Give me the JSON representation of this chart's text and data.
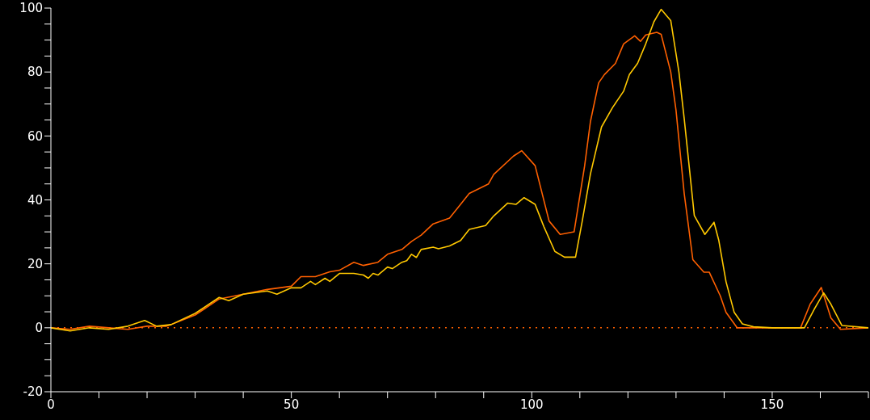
{
  "chart_data": {
    "type": "line",
    "xlim": [
      0,
      170
    ],
    "ylim": [
      -20,
      100
    ],
    "xticks": [
      0,
      {
        "value": 10,
        "label": null
      },
      {
        "value": 20,
        "label": null
      },
      {
        "value": 30,
        "label": null
      },
      {
        "value": 40,
        "label": null
      },
      50,
      {
        "value": 60,
        "label": null
      },
      {
        "value": 70,
        "label": null
      },
      {
        "value": 80,
        "label": null
      },
      {
        "value": 90,
        "label": null
      },
      100,
      {
        "value": 110,
        "label": null
      },
      {
        "value": 120,
        "label": null
      },
      {
        "value": 130,
        "label": null
      },
      {
        "value": 140,
        "label": null
      },
      150,
      {
        "value": 160,
        "label": null
      },
      {
        "value": 170,
        "label": null
      }
    ],
    "yticks": [
      -20,
      {
        "value": -15,
        "label": null
      },
      {
        "value": -10,
        "label": null
      },
      {
        "value": -5,
        "label": null
      },
      0,
      {
        "value": 5,
        "label": null
      },
      {
        "value": 10,
        "label": null
      },
      {
        "value": 15,
        "label": null
      },
      20,
      {
        "value": 25,
        "label": null
      },
      {
        "value": 30,
        "label": null
      },
      {
        "value": 35,
        "label": null
      },
      40,
      {
        "value": 45,
        "label": null
      },
      {
        "value": 50,
        "label": null
      },
      {
        "value": 55,
        "label": null
      },
      60,
      {
        "value": 65,
        "label": null
      },
      {
        "value": 70,
        "label": null
      },
      {
        "value": 75,
        "label": null
      },
      80,
      {
        "value": 85,
        "label": null
      },
      {
        "value": 90,
        "label": null
      },
      {
        "value": 95,
        "label": null
      },
      100
    ],
    "grid": false,
    "legend": false,
    "marker": "none",
    "line_style": "solid",
    "ref_lines": [
      {
        "axis": "y",
        "value": 0,
        "label": null,
        "color": "#ff6000",
        "line_style": "dotted"
      }
    ],
    "series": [
      {
        "color": "#ff6000",
        "x": [
          0,
          4,
          8,
          12,
          16,
          20,
          24,
          25,
          30,
          35,
          40,
          45,
          50,
          52,
          55,
          58,
          60,
          63,
          65,
          68,
          70,
          73,
          75,
          77,
          79.5,
          82.9,
          87,
          91,
          92.1,
          96.2,
          97.9,
          100.7,
          103.6,
          105.9,
          108.8,
          111,
          112.2,
          113.9,
          115.1,
          117.4,
          119.1,
          121.4,
          122.6,
          123.7,
          126,
          126.9,
          128.9,
          130,
          131.7,
          133.5,
          135.8,
          136.9,
          139.2,
          140.4,
          142.7,
          150,
          155.9,
          157.9,
          160.2,
          162.2,
          164.2,
          170
        ],
        "values": [
          0,
          -0.5,
          0.5,
          0,
          -0.5,
          0.5,
          0.5,
          1,
          4,
          9,
          10.5,
          12,
          13,
          16,
          16,
          17.5,
          18,
          20.5,
          19.5,
          20.5,
          23,
          24.5,
          27,
          29,
          32.5,
          34.3,
          42,
          45,
          48,
          53.7,
          55.4,
          50.7,
          33.4,
          29.2,
          30,
          50.7,
          64.5,
          76.6,
          79.2,
          82.7,
          88.8,
          91.3,
          89.6,
          91.6,
          92.4,
          91.8,
          80,
          68,
          42,
          21.3,
          17.4,
          17.4,
          10,
          4.8,
          0,
          0,
          0,
          7.4,
          12.6,
          3.1,
          -0.5,
          0
        ]
      },
      {
        "color": "#ffc800",
        "x": [
          0,
          4,
          8,
          12,
          16,
          19.5,
          22,
          25,
          30,
          35,
          37,
          40,
          45,
          47,
          50,
          52,
          54,
          55,
          57,
          58,
          60,
          63,
          65,
          66,
          67,
          68,
          70,
          71,
          73,
          74,
          75,
          76,
          77,
          79.5,
          80.6,
          82.9,
          85.2,
          87,
          90.4,
          92.1,
          95,
          96.7,
          98.4,
          100.7,
          102.5,
          104.8,
          106.8,
          109.1,
          110.5,
          112.2,
          114.5,
          116.8,
          119.1,
          120.3,
          122,
          123.7,
          125.4,
          126.9,
          128.9,
          130.6,
          131.7,
          133.8,
          136,
          137.9,
          138.9,
          140.4,
          142.1,
          143.8,
          146.1,
          150,
          156.7,
          158.7,
          160.7,
          162.2,
          164.5,
          170
        ],
        "values": [
          0,
          -1,
          0,
          -0.5,
          0.5,
          2.3,
          0.5,
          1,
          4.5,
          9.5,
          8.5,
          10.5,
          11.5,
          10.5,
          12.5,
          12.5,
          14.5,
          13.5,
          15.5,
          14.5,
          17,
          17,
          16.5,
          15.5,
          17,
          16.5,
          19,
          18.5,
          20.5,
          21,
          23,
          22,
          24.5,
          25.2,
          24.7,
          25.6,
          27.3,
          30.8,
          32,
          35,
          39,
          38.6,
          40.7,
          38.6,
          31.7,
          23.9,
          22.1,
          22.1,
          33.4,
          48.1,
          62.8,
          68.9,
          74,
          79.2,
          82.7,
          88.8,
          95.7,
          99.6,
          96.1,
          80,
          65.4,
          35.1,
          29.2,
          33,
          27.3,
          14.4,
          4.8,
          1.2,
          0.3,
          0,
          0,
          5.7,
          10.9,
          7.4,
          0.7,
          0
        ]
      }
    ]
  }
}
